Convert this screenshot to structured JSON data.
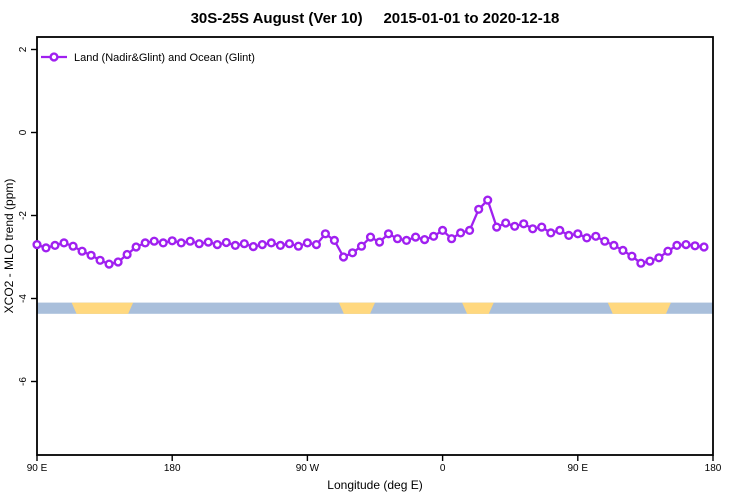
{
  "chart_data": {
    "type": "line",
    "title": "30S-25S August (Ver 10)     2015-01-01 to 2020-12-18",
    "xlabel": "Longitude (deg E)",
    "ylabel": "XCO2 - MLO trend (ppm)",
    "legend": [
      {
        "label": "Land (Nadir&Glint) and Ocean (Glint)",
        "color": "#A020F0",
        "marker": "open-circle"
      }
    ],
    "x_axis": {
      "range_deg": [
        90,
        540
      ],
      "ticks": [
        {
          "value": 90,
          "label": "90 E"
        },
        {
          "value": 180,
          "label": "180"
        },
        {
          "value": 270,
          "label": "90 W"
        },
        {
          "value": 360,
          "label": "0"
        },
        {
          "value": 450,
          "label": "90 E"
        },
        {
          "value": 540,
          "label": "180"
        }
      ]
    },
    "y_axis": {
      "ticks": [
        2,
        0,
        -2,
        -4,
        -6
      ],
      "display_range": [
        2.3,
        -7.8
      ]
    },
    "series": [
      {
        "name": "Land (Nadir&Glint) and Ocean (Glint)",
        "color": "#A020F0",
        "marker": "open-circle",
        "x": [
          90,
          96,
          102,
          108,
          114,
          120,
          126,
          132,
          138,
          144,
          150,
          156,
          162,
          168,
          174,
          180,
          186,
          192,
          198,
          204,
          210,
          216,
          222,
          228,
          234,
          240,
          246,
          252,
          258,
          264,
          270,
          276,
          282,
          288,
          294,
          300,
          306,
          312,
          318,
          324,
          330,
          336,
          342,
          348,
          354,
          360,
          366,
          372,
          378,
          384,
          390,
          396,
          402,
          408,
          414,
          420,
          426,
          432,
          438,
          444,
          450,
          456,
          462,
          468,
          474,
          480,
          486,
          492,
          498,
          504,
          510,
          516,
          522,
          528,
          534
        ],
        "y": [
          -2.7,
          -2.78,
          -2.72,
          -2.66,
          -2.74,
          -2.86,
          -2.96,
          -3.08,
          -3.17,
          -3.12,
          -2.94,
          -2.76,
          -2.66,
          -2.62,
          -2.66,
          -2.61,
          -2.66,
          -2.62,
          -2.68,
          -2.64,
          -2.7,
          -2.65,
          -2.72,
          -2.68,
          -2.75,
          -2.7,
          -2.66,
          -2.72,
          -2.68,
          -2.74,
          -2.66,
          -2.7,
          -2.44,
          -2.6,
          -3.0,
          -2.9,
          -2.74,
          -2.52,
          -2.64,
          -2.44,
          -2.56,
          -2.6,
          -2.52,
          -2.58,
          -2.5,
          -2.36,
          -2.56,
          -2.42,
          -2.36,
          -1.85,
          -1.63,
          -2.28,
          -2.18,
          -2.26,
          -2.2,
          -2.32,
          -2.28,
          -2.42,
          -2.36,
          -2.48,
          -2.44,
          -2.54,
          -2.5,
          -2.62,
          -2.72,
          -2.84,
          -2.98,
          -3.15,
          -3.1,
          -3.02,
          -2.86,
          -2.72,
          -2.7,
          -2.73,
          -2.76
        ]
      }
    ],
    "band": {
      "description": "land-ocean indicator strip",
      "ocean_color": "#A9BFDB",
      "land_color": "#FFD87F",
      "y_top_value": -4.1,
      "y_bottom_value": -4.37,
      "land_segments_deg": [
        [
          113,
          154
        ],
        [
          291,
          315
        ],
        [
          373,
          394
        ],
        [
          470,
          512
        ]
      ]
    }
  }
}
